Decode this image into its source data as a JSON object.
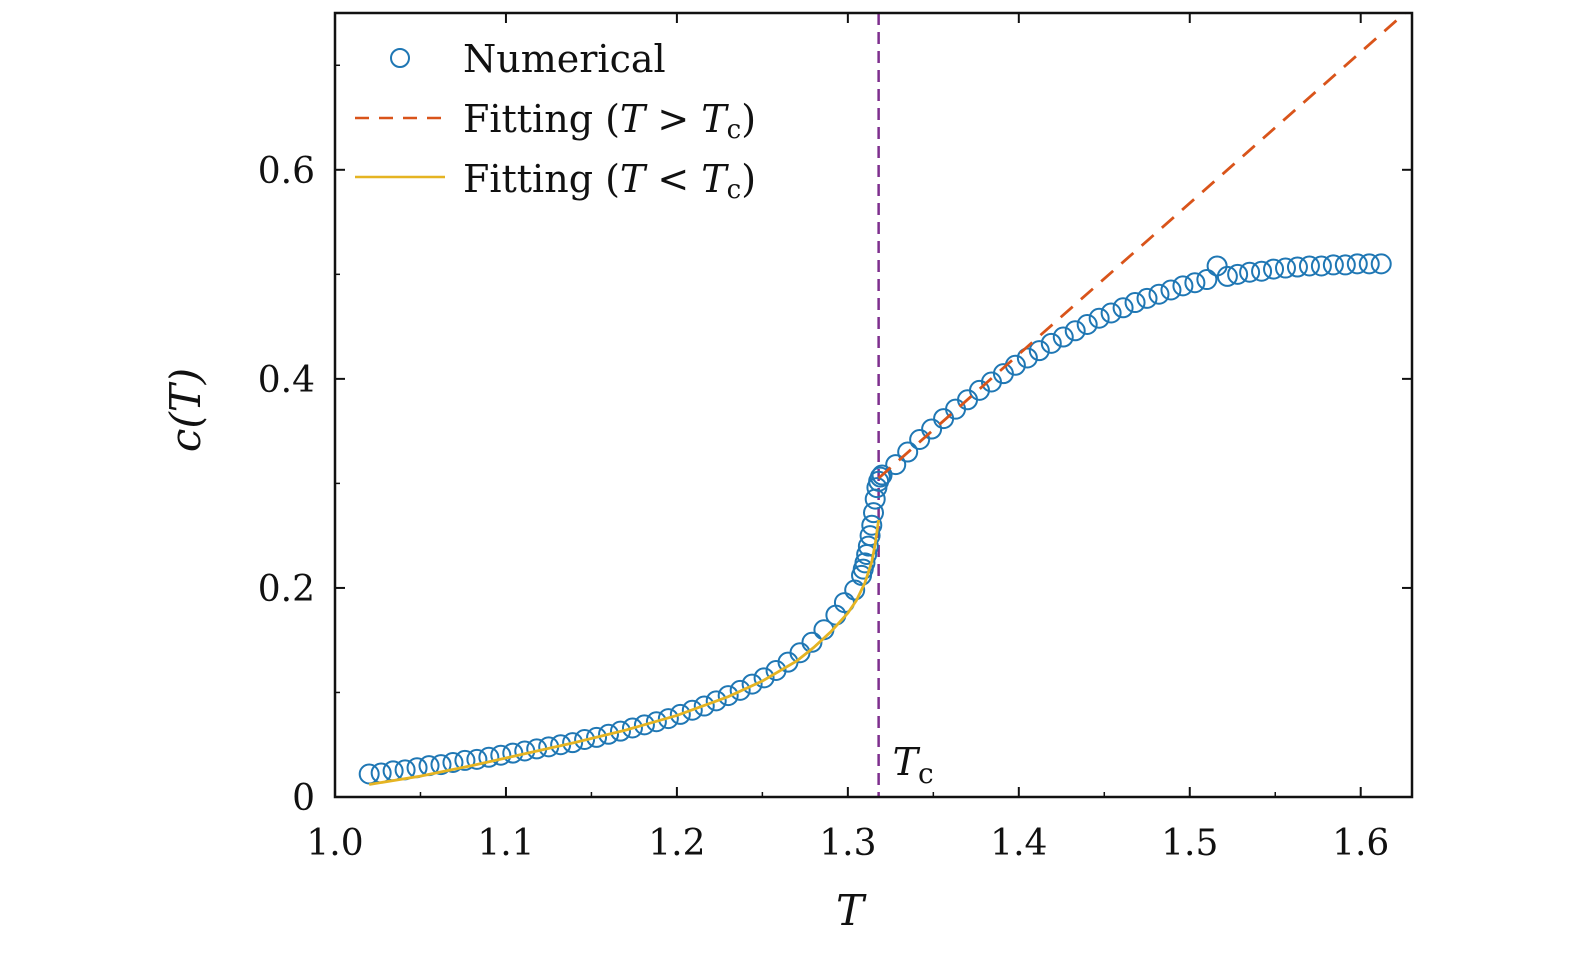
{
  "chart_data": {
    "type": "scatter",
    "title": "",
    "xlabel": "T",
    "ylabel": "c(T)",
    "xlim": [
      1.0,
      1.63
    ],
    "ylim": [
      0,
      0.75
    ],
    "xticks": [
      1.0,
      1.1,
      1.2,
      1.3,
      1.4,
      1.5,
      1.6
    ],
    "xtick_labels": [
      "1.0",
      "1.1",
      "1.2",
      "1.3",
      "1.4",
      "1.5",
      "1.6"
    ],
    "yticks": [
      0,
      0.2,
      0.4,
      0.6
    ],
    "ytick_labels": [
      "0",
      "0.2",
      "0.4",
      "0.6"
    ],
    "grid": false,
    "legend_position": "top-left",
    "colors": {
      "numerical": "#1f77b4",
      "fit_above": "#d9541a",
      "fit_below": "#e5b422",
      "tc_line": "#7e2f8e"
    },
    "annotations": [
      {
        "text": "T",
        "subscript": "c",
        "x": 1.318
      }
    ],
    "tc": 1.318,
    "series": [
      {
        "name": "Numerical",
        "style": "open-circle",
        "x": [
          1.02,
          1.027,
          1.034,
          1.041,
          1.048,
          1.055,
          1.062,
          1.069,
          1.076,
          1.083,
          1.09,
          1.097,
          1.104,
          1.111,
          1.118,
          1.125,
          1.132,
          1.139,
          1.146,
          1.153,
          1.16,
          1.167,
          1.174,
          1.181,
          1.188,
          1.195,
          1.202,
          1.209,
          1.216,
          1.223,
          1.23,
          1.237,
          1.244,
          1.251,
          1.258,
          1.265,
          1.272,
          1.279,
          1.286,
          1.293,
          1.298,
          1.304,
          1.308,
          1.309,
          1.31,
          1.311,
          1.312,
          1.313,
          1.314,
          1.315,
          1.316,
          1.317,
          1.318,
          1.319,
          1.32,
          1.328,
          1.335,
          1.342,
          1.349,
          1.356,
          1.363,
          1.37,
          1.377,
          1.384,
          1.391,
          1.398,
          1.405,
          1.412,
          1.419,
          1.426,
          1.433,
          1.44,
          1.447,
          1.454,
          1.461,
          1.468,
          1.475,
          1.482,
          1.489,
          1.496,
          1.503,
          1.51,
          1.516,
          1.522,
          1.528,
          1.535,
          1.542,
          1.549,
          1.556,
          1.563,
          1.57,
          1.577,
          1.584,
          1.591,
          1.598,
          1.605,
          1.612
        ],
        "y": [
          0.022,
          0.023,
          0.025,
          0.026,
          0.028,
          0.03,
          0.031,
          0.033,
          0.035,
          0.036,
          0.038,
          0.04,
          0.042,
          0.044,
          0.046,
          0.048,
          0.05,
          0.052,
          0.055,
          0.057,
          0.06,
          0.063,
          0.066,
          0.069,
          0.072,
          0.075,
          0.079,
          0.083,
          0.087,
          0.092,
          0.097,
          0.102,
          0.108,
          0.114,
          0.121,
          0.129,
          0.138,
          0.148,
          0.16,
          0.174,
          0.186,
          0.198,
          0.212,
          0.218,
          0.224,
          0.232,
          0.24,
          0.25,
          0.26,
          0.272,
          0.285,
          0.296,
          0.302,
          0.306,
          0.308,
          0.318,
          0.33,
          0.342,
          0.352,
          0.362,
          0.371,
          0.38,
          0.389,
          0.397,
          0.405,
          0.413,
          0.42,
          0.427,
          0.434,
          0.44,
          0.446,
          0.452,
          0.458,
          0.463,
          0.468,
          0.473,
          0.477,
          0.481,
          0.485,
          0.489,
          0.492,
          0.495,
          0.508,
          0.498,
          0.5,
          0.502,
          0.503,
          0.505,
          0.506,
          0.507,
          0.508,
          0.508,
          0.509,
          0.509,
          0.51,
          0.51,
          0.51
        ]
      },
      {
        "name": "Fitting (T > Tc)",
        "style": "dashed-line",
        "x": [
          1.318,
          1.63
        ],
        "y": [
          0.305,
          0.756
        ]
      },
      {
        "name": "Fitting (T < Tc)",
        "style": "solid-line",
        "x": [
          1.02,
          1.05,
          1.08,
          1.11,
          1.14,
          1.17,
          1.2,
          1.23,
          1.25,
          1.27,
          1.28,
          1.29,
          1.3,
          1.305,
          1.31,
          1.314,
          1.316,
          1.318
        ],
        "y": [
          0.012,
          0.02,
          0.03,
          0.041,
          0.052,
          0.064,
          0.078,
          0.096,
          0.111,
          0.13,
          0.143,
          0.158,
          0.176,
          0.188,
          0.205,
          0.225,
          0.242,
          0.265
        ]
      }
    ],
    "legend": [
      {
        "label_main": "Numerical",
        "label_T": "",
        "label_op": "",
        "label_Tc": "",
        "label_sub": ""
      },
      {
        "label_main": "Fitting (",
        "label_T": "T",
        "label_op": " > ",
        "label_Tc": "T",
        "label_sub": "c"
      },
      {
        "label_main": "Fitting (",
        "label_T": "T",
        "label_op": " < ",
        "label_Tc": "T",
        "label_sub": "c"
      }
    ]
  }
}
